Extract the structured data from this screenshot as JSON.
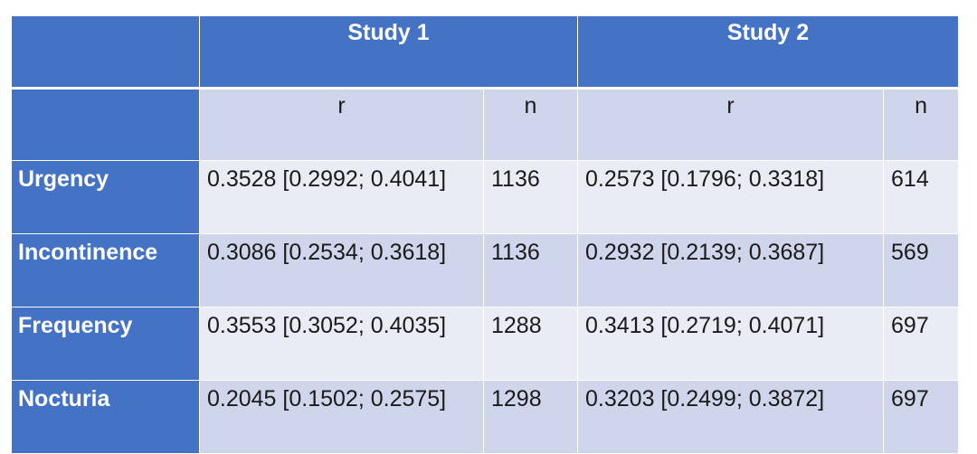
{
  "table": {
    "study_headers": [
      "Study 1",
      "Study 2"
    ],
    "sub_headers": [
      "r",
      "n",
      "r",
      "n"
    ],
    "rows": [
      {
        "label": "Urgency",
        "s1_r": "0.3528 [0.2992; 0.4041]",
        "s1_n": "1136",
        "s2_r": "0.2573 [0.1796; 0.3318]",
        "s2_n": "614"
      },
      {
        "label": "Incontinence",
        "s1_r": "0.3086 [0.2534; 0.3618]",
        "s1_n": "1136",
        "s2_r": "0.2932 [0.2139; 0.3687]",
        "s2_n": "569"
      },
      {
        "label": "Frequency",
        "s1_r": "0.3553 [0.3052; 0.4035]",
        "s1_n": "1288",
        "s2_r": "0.3413 [0.2719; 0.4071]",
        "s2_n": "697"
      },
      {
        "label": "Nocturia",
        "s1_r": "0.2045 [0.1502; 0.2575]",
        "s1_n": "1298",
        "s2_r": "0.3203 [0.2499; 0.3872]",
        "s2_n": "697"
      }
    ]
  },
  "colors": {
    "header_blue": "#4472c4",
    "band_dark": "#cfd5ea",
    "band_light": "#e9ebf5"
  }
}
